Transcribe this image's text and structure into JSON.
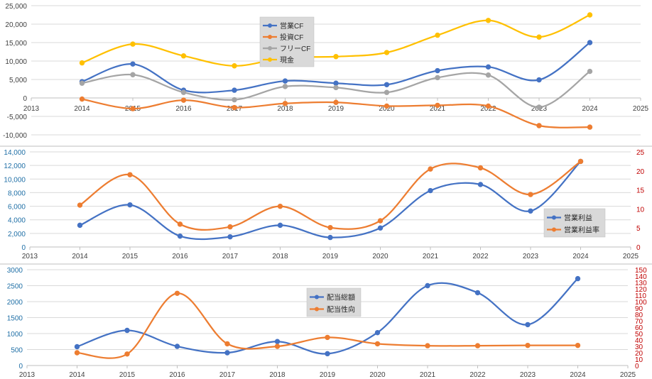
{
  "chart_data": [
    {
      "type": "line",
      "x": [
        2014,
        2015,
        2016,
        2017,
        2018,
        2019,
        2020,
        2021,
        2022,
        2023,
        2024
      ],
      "xlim": [
        2013,
        2025
      ],
      "ylim": [
        -10000,
        25000
      ],
      "x_ticks": [
        "2013",
        "2014",
        "2015",
        "2016",
        "2017",
        "2018",
        "2019",
        "2020",
        "2021",
        "2022",
        "2023",
        "2024",
        "2025"
      ],
      "y_ticks": [
        "-10,000",
        "-5,000",
        "0",
        "5,000",
        "10,000",
        "15,000",
        "20,000",
        "25,000"
      ],
      "y_tick_values": [
        -10000,
        -5000,
        0,
        5000,
        10000,
        15000,
        20000,
        25000
      ],
      "grid": true,
      "legend_position": "top-center",
      "smooth": true,
      "series": [
        {
          "name": "営業CF",
          "color": "#4472c4",
          "values": [
            4400,
            9200,
            2100,
            2100,
            4600,
            4000,
            3600,
            7400,
            8400,
            4900,
            15000
          ]
        },
        {
          "name": "投資CF",
          "color": "#ed7d31",
          "values": [
            -300,
            -2900,
            -600,
            -2600,
            -1500,
            -1200,
            -2200,
            -2000,
            -2200,
            -7500,
            -7900
          ]
        },
        {
          "name": "フリーCF",
          "color": "#a5a5a5",
          "values": [
            4000,
            6300,
            1500,
            -500,
            3100,
            2800,
            1500,
            5500,
            6200,
            -2500,
            7200
          ]
        },
        {
          "name": "現金",
          "color": "#ffc000",
          "values": [
            9500,
            14600,
            11400,
            8700,
            10900,
            11200,
            12300,
            17000,
            21000,
            16500,
            22500
          ]
        }
      ]
    },
    {
      "type": "line",
      "x": [
        2014,
        2015,
        2016,
        2017,
        2018,
        2019,
        2020,
        2021,
        2022,
        2023,
        2024
      ],
      "xlim": [
        2013,
        2025
      ],
      "ylim": [
        0,
        14000
      ],
      "y2lim": [
        0,
        25
      ],
      "x_ticks": [
        "2013",
        "2014",
        "2015",
        "2016",
        "2017",
        "2018",
        "2019",
        "2020",
        "2021",
        "2022",
        "2023",
        "2024",
        "2025"
      ],
      "y_ticks": [
        "0",
        "2,000",
        "4,000",
        "6,000",
        "8,000",
        "10,000",
        "12,000",
        "14,000"
      ],
      "y_tick_values": [
        0,
        2000,
        4000,
        6000,
        8000,
        10000,
        12000,
        14000
      ],
      "y2_ticks": [
        "0",
        "5",
        "10",
        "15",
        "20",
        "25"
      ],
      "y2_tick_values": [
        0,
        5,
        10,
        15,
        20,
        25
      ],
      "grid": true,
      "legend_position": "bottom-right",
      "smooth": true,
      "series": [
        {
          "name": "営業利益",
          "color": "#4472c4",
          "axis": "left",
          "values": [
            3200,
            6200,
            1600,
            1500,
            3200,
            1400,
            2800,
            8300,
            9200,
            5300,
            12600
          ]
        },
        {
          "name": "営業利益率",
          "color": "#ed7d31",
          "axis": "right",
          "values": [
            11,
            19,
            6,
            5.3,
            10.7,
            5.1,
            6.9,
            20.5,
            20.8,
            13.8,
            22.5
          ]
        }
      ]
    },
    {
      "type": "line",
      "x": [
        2014,
        2015,
        2016,
        2017,
        2018,
        2019,
        2020,
        2021,
        2022,
        2023,
        2024
      ],
      "xlim": [
        2013,
        2025
      ],
      "ylim": [
        0,
        3000
      ],
      "y2lim": [
        0,
        150
      ],
      "x_ticks": [
        "2013",
        "2014",
        "2015",
        "2016",
        "2017",
        "2018",
        "2019",
        "2020",
        "2021",
        "2022",
        "2023",
        "2024",
        "2025"
      ],
      "y_ticks": [
        "0",
        "500",
        "1000",
        "1500",
        "2000",
        "2500",
        "3000"
      ],
      "y_tick_values": [
        0,
        500,
        1000,
        1500,
        2000,
        2500,
        3000
      ],
      "y2_ticks": [
        "0",
        "10",
        "20",
        "30",
        "40",
        "50",
        "60",
        "70",
        "80",
        "90",
        "100",
        "110",
        "120",
        "130",
        "140",
        "150"
      ],
      "y2_tick_values": [
        0,
        10,
        20,
        30,
        40,
        50,
        60,
        70,
        80,
        90,
        100,
        110,
        120,
        130,
        140,
        150
      ],
      "grid": true,
      "legend_position": "top-center",
      "smooth": true,
      "series": [
        {
          "name": "配当総額",
          "color": "#4472c4",
          "axis": "left",
          "values": [
            590,
            1100,
            600,
            400,
            750,
            370,
            1030,
            2500,
            2280,
            1280,
            2720
          ]
        },
        {
          "name": "配当性向",
          "color": "#ed7d31",
          "axis": "right",
          "values": [
            20,
            18,
            113,
            34,
            30,
            44,
            34,
            31,
            31,
            31.5,
            31.5
          ]
        }
      ]
    }
  ]
}
